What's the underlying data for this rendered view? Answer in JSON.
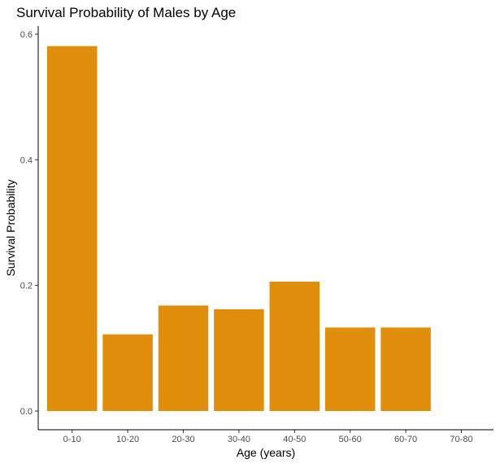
{
  "chart_data": {
    "type": "bar",
    "title": "Survival Probability of Males by Age",
    "xlabel": "Age (years)",
    "ylabel": "Survival Probability",
    "categories": [
      "0-10",
      "10-20",
      "20-30",
      "30-40",
      "40-50",
      "50-60",
      "60-70",
      "70-80"
    ],
    "values": [
      0.581,
      0.122,
      0.168,
      0.162,
      0.206,
      0.133,
      0.133,
      0
    ],
    "ylim": [
      0,
      0.613
    ],
    "yticks": [
      0.0,
      0.2,
      0.4,
      0.6
    ],
    "ytick_labels": [
      "0.0",
      "0.2",
      "0.4",
      "0.6"
    ],
    "grid": false,
    "bar_color": "#E08E0B"
  }
}
